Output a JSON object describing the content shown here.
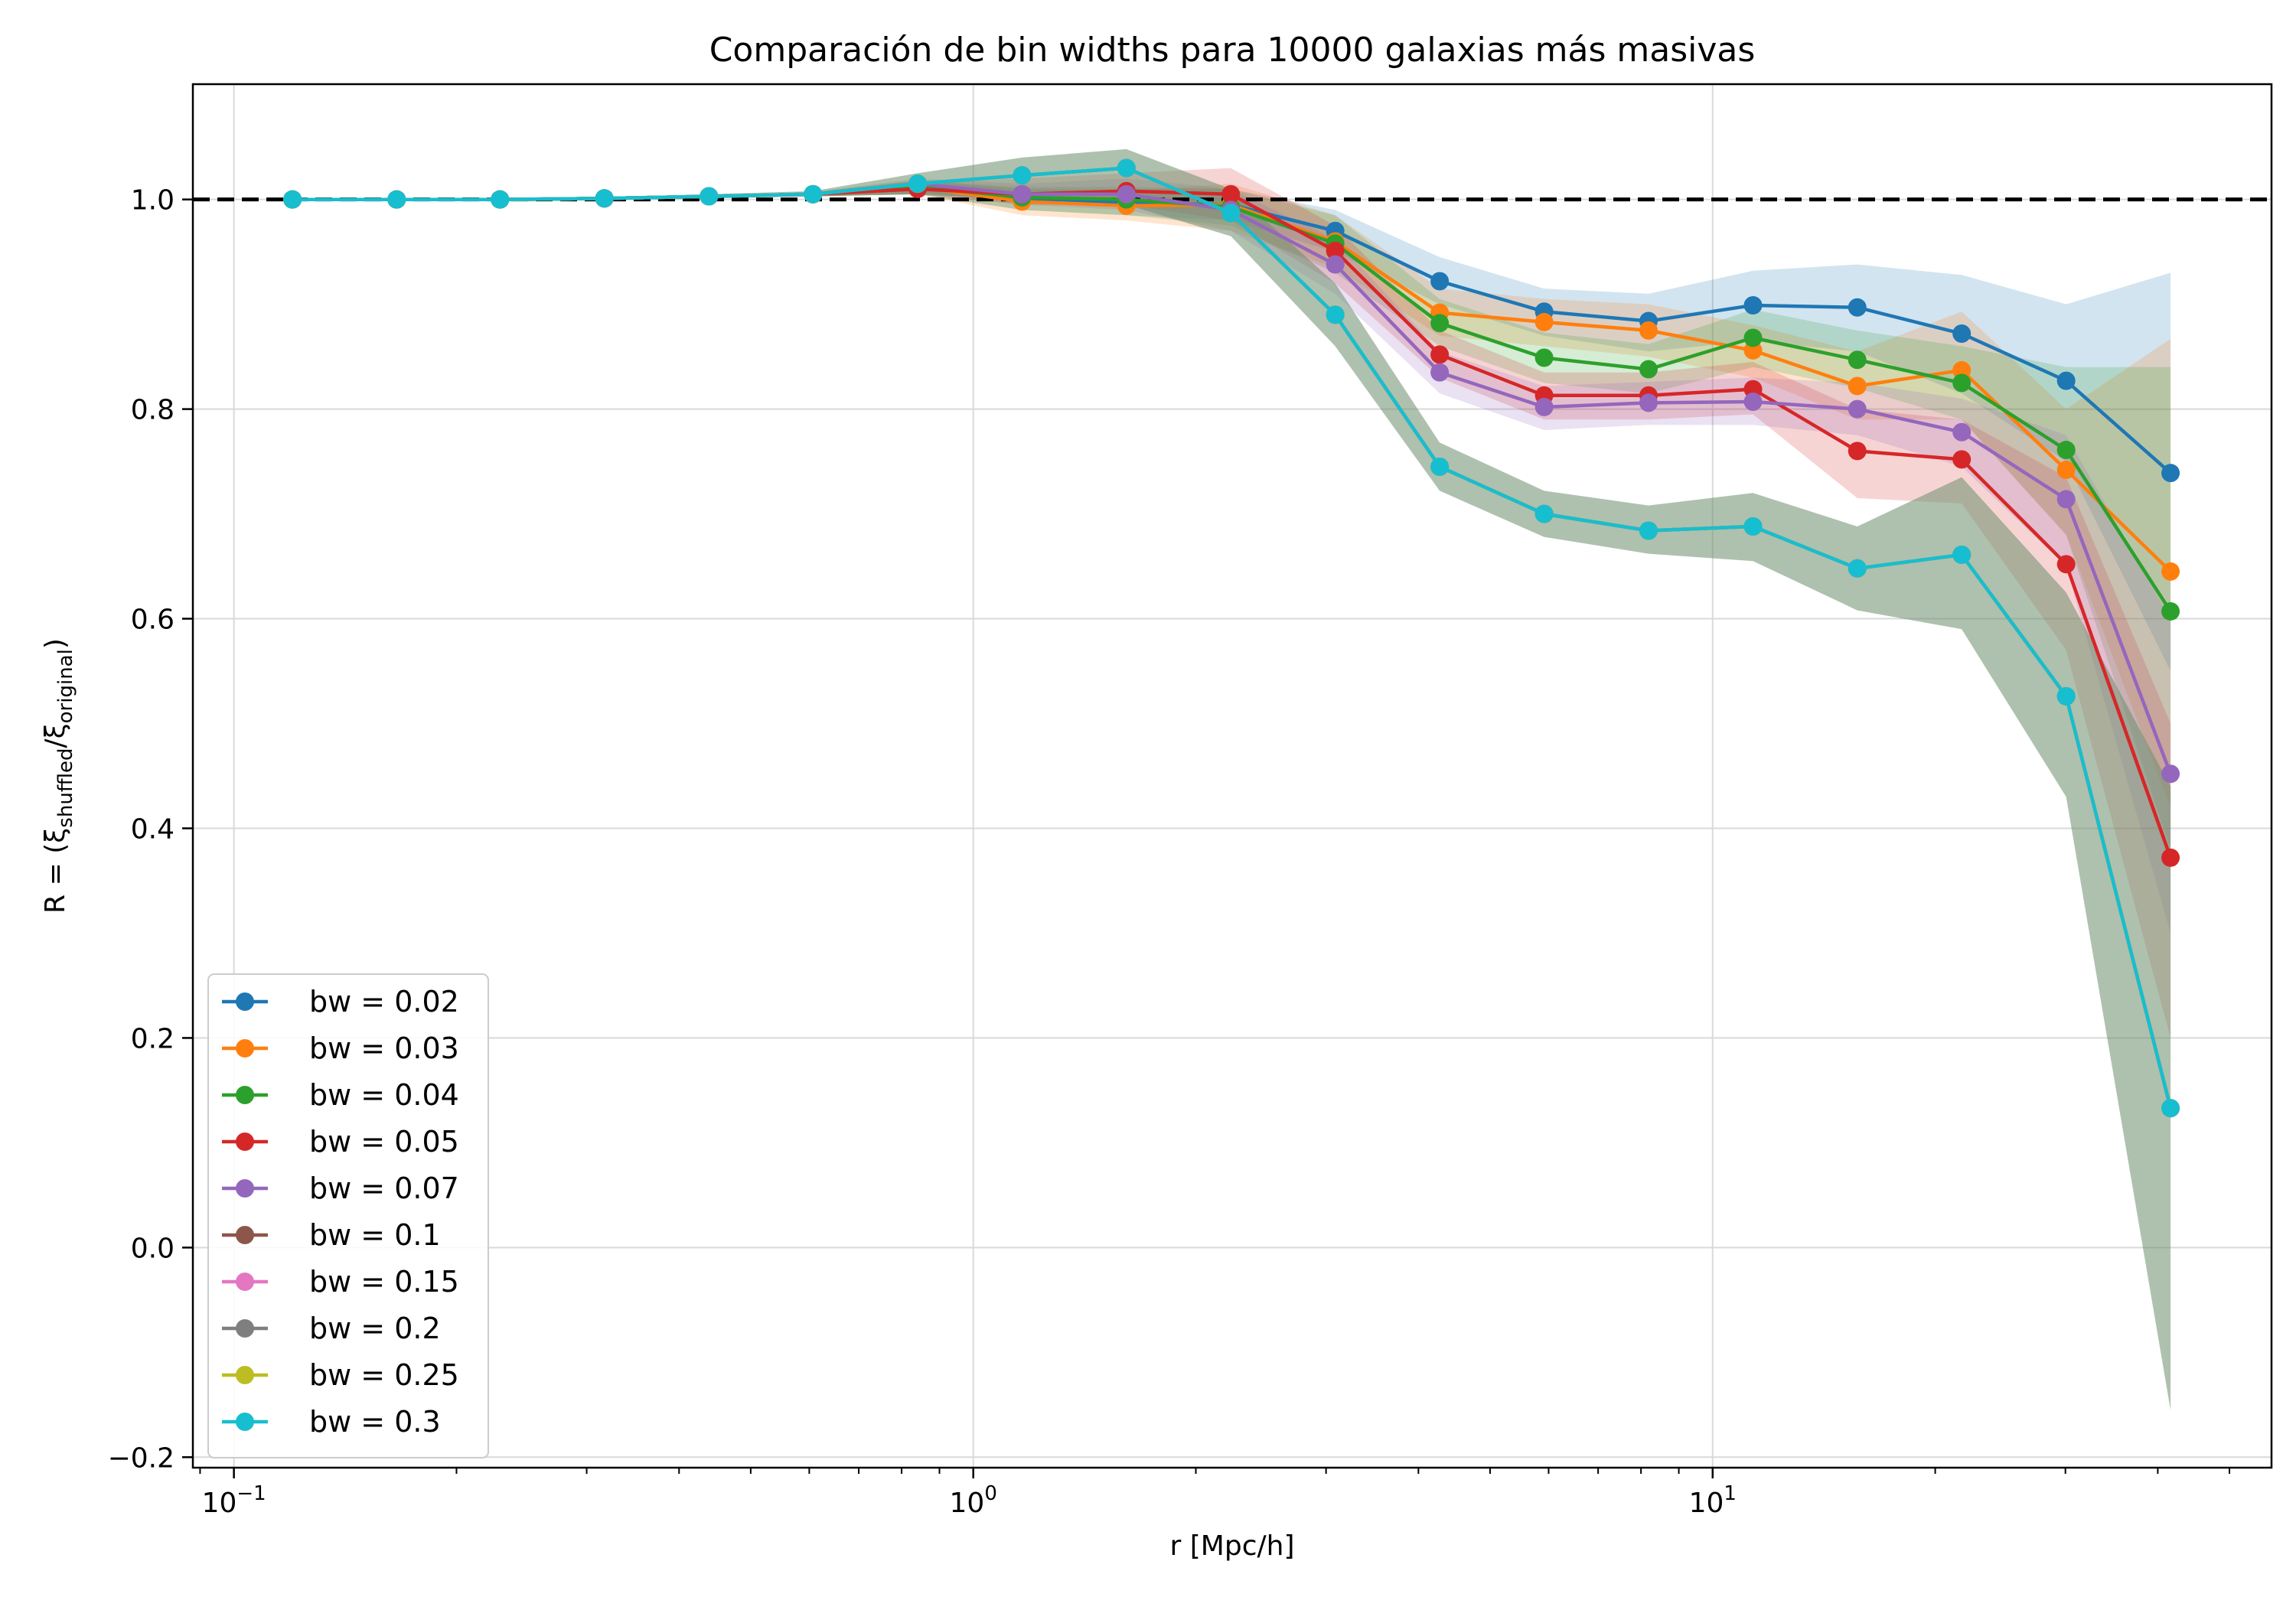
{
  "chart_data": {
    "type": "line",
    "title": "Comparación de bin widths para 10000 galaxias más masivas",
    "xlabel": "r [Mpc/h]",
    "ylabel": {
      "prefix": "R = (ξ",
      "sub1": "shuffled",
      "mid": "/ξ",
      "sub2": "original",
      "suffix": ")"
    },
    "xscale": "log",
    "xlim": [
      0.088,
      57
    ],
    "ylim": [
      -0.21,
      1.11
    ],
    "x_ticks": [
      {
        "value": 0.1,
        "base": "10",
        "exp": "−1"
      },
      {
        "value": 1,
        "base": "10",
        "exp": "0"
      },
      {
        "value": 10,
        "base": "10",
        "exp": "1"
      }
    ],
    "y_ticks": [
      {
        "value": -0.2,
        "label": "−0.2"
      },
      {
        "value": 0.0,
        "label": "0.0"
      },
      {
        "value": 0.2,
        "label": "0.2"
      },
      {
        "value": 0.4,
        "label": "0.4"
      },
      {
        "value": 0.6,
        "label": "0.6"
      },
      {
        "value": 0.8,
        "label": "0.8"
      },
      {
        "value": 1.0,
        "label": "1.0"
      }
    ],
    "grid": true,
    "legend_position": "lower-left",
    "reference_line": {
      "y": 1.0,
      "style": "dashed",
      "color": "#000000"
    },
    "x": [
      0.12,
      0.166,
      0.229,
      0.317,
      0.439,
      0.607,
      0.841,
      1.164,
      1.611,
      2.23,
      3.087,
      4.274,
      5.917,
      8.19,
      11.34,
      15.69,
      21.72,
      30.07,
      41.62
    ],
    "series": [
      {
        "name": "bw = 0.02",
        "color": "#1f77b4",
        "draw_band": true,
        "values": [
          1.0,
          1.0,
          1.0,
          1.001,
          1.003,
          1.005,
          1.012,
          1.0,
          0.997,
          0.995,
          0.97,
          0.922,
          0.893,
          0.884,
          0.899,
          0.897,
          0.872,
          0.827,
          0.739
        ],
        "lower": [
          1.0,
          1.0,
          1.0,
          1.0,
          1.002,
          1.003,
          1.005,
          0.99,
          0.985,
          0.98,
          0.95,
          0.9,
          0.87,
          0.855,
          0.865,
          0.855,
          0.815,
          0.75,
          0.55
        ],
        "upper": [
          1.0,
          1.0,
          1.0,
          1.002,
          1.004,
          1.007,
          1.018,
          1.01,
          1.01,
          1.01,
          0.99,
          0.945,
          0.915,
          0.91,
          0.932,
          0.938,
          0.928,
          0.9,
          0.93
        ]
      },
      {
        "name": "bw = 0.03",
        "color": "#ff7f0e",
        "draw_band": true,
        "values": [
          1.0,
          1.0,
          1.0,
          1.001,
          1.003,
          1.005,
          1.012,
          0.998,
          0.994,
          0.995,
          0.96,
          0.892,
          0.883,
          0.875,
          0.856,
          0.822,
          0.837,
          0.742,
          0.645
        ],
        "lower": [
          1.0,
          1.0,
          1.0,
          1.0,
          1.002,
          1.003,
          1.005,
          0.985,
          0.98,
          0.97,
          0.935,
          0.87,
          0.86,
          0.85,
          0.83,
          0.79,
          0.79,
          0.68,
          0.42
        ],
        "upper": [
          1.0,
          1.0,
          1.0,
          1.002,
          1.004,
          1.007,
          1.018,
          1.01,
          1.008,
          1.015,
          0.985,
          0.915,
          0.905,
          0.9,
          0.88,
          0.855,
          0.893,
          0.8,
          0.867
        ]
      },
      {
        "name": "bw = 0.04",
        "color": "#2ca02c",
        "draw_band": true,
        "values": [
          1.0,
          1.0,
          1.0,
          1.001,
          1.003,
          1.005,
          1.012,
          1.002,
          1.0,
          0.993,
          0.958,
          0.882,
          0.849,
          0.838,
          0.868,
          0.847,
          0.825,
          0.761,
          0.607
        ],
        "lower": [
          1.0,
          1.0,
          1.0,
          1.0,
          1.002,
          1.003,
          1.005,
          0.99,
          0.985,
          0.975,
          0.93,
          0.86,
          0.825,
          0.815,
          0.84,
          0.82,
          0.79,
          0.68,
          0.38
        ],
        "upper": [
          1.0,
          1.0,
          1.0,
          1.002,
          1.004,
          1.007,
          1.018,
          1.012,
          1.012,
          1.01,
          0.985,
          0.905,
          0.873,
          0.862,
          0.895,
          0.875,
          0.86,
          0.84,
          0.84
        ]
      },
      {
        "name": "bw = 0.05",
        "color": "#d62728",
        "draw_band": true,
        "values": [
          1.0,
          1.0,
          1.0,
          1.001,
          1.003,
          1.005,
          1.01,
          1.005,
          1.008,
          1.005,
          0.951,
          0.852,
          0.813,
          0.813,
          0.819,
          0.76,
          0.752,
          0.652,
          0.372
        ],
        "lower": [
          1.0,
          1.0,
          1.0,
          1.0,
          1.002,
          1.003,
          1.005,
          0.995,
          0.995,
          0.98,
          0.92,
          0.83,
          0.79,
          0.79,
          0.795,
          0.715,
          0.71,
          0.57,
          0.2
        ],
        "upper": [
          1.0,
          1.0,
          1.0,
          1.002,
          1.004,
          1.007,
          1.015,
          1.02,
          1.025,
          1.03,
          0.975,
          0.875,
          0.835,
          0.835,
          0.845,
          0.8,
          0.79,
          0.735,
          0.5
        ]
      },
      {
        "name": "bw = 0.07",
        "color": "#9467bd",
        "draw_band": true,
        "values": [
          1.0,
          1.0,
          1.0,
          1.001,
          1.003,
          1.005,
          1.015,
          1.005,
          1.005,
          0.99,
          0.938,
          0.835,
          0.802,
          0.806,
          0.807,
          0.8,
          0.778,
          0.714,
          0.452
        ],
        "lower": [
          1.0,
          1.0,
          1.0,
          1.0,
          1.002,
          1.003,
          1.008,
          0.995,
          0.99,
          0.97,
          0.91,
          0.815,
          0.78,
          0.785,
          0.785,
          0.775,
          0.745,
          0.65,
          0.3
        ],
        "upper": [
          1.0,
          1.0,
          1.0,
          1.002,
          1.004,
          1.007,
          1.02,
          1.015,
          1.02,
          1.01,
          0.962,
          0.855,
          0.822,
          0.826,
          0.83,
          0.825,
          0.81,
          0.775,
          0.6
        ]
      },
      {
        "name": "bw = 0.1",
        "color": "#8c564b",
        "draw_band": false,
        "values": [
          1.0,
          1.0,
          1.0,
          1.001,
          1.003,
          1.005,
          1.015,
          1.023,
          1.03,
          0.987,
          0.89,
          0.745,
          0.7,
          0.684,
          0.688,
          0.648,
          0.661,
          0.526,
          0.133
        ]
      },
      {
        "name": "bw = 0.15",
        "color": "#e377c2",
        "draw_band": false,
        "values": [
          1.0,
          1.0,
          1.0,
          1.001,
          1.003,
          1.005,
          1.015,
          1.023,
          1.03,
          0.987,
          0.89,
          0.745,
          0.7,
          0.684,
          0.688,
          0.648,
          0.661,
          0.526,
          0.133
        ]
      },
      {
        "name": "bw = 0.2",
        "color": "#7f7f7f",
        "draw_band": false,
        "values": [
          1.0,
          1.0,
          1.0,
          1.001,
          1.003,
          1.005,
          1.015,
          1.023,
          1.03,
          0.987,
          0.89,
          0.745,
          0.7,
          0.684,
          0.688,
          0.648,
          0.661,
          0.526,
          0.133
        ]
      },
      {
        "name": "bw = 0.25",
        "color": "#bcbd22",
        "draw_band": false,
        "values": [
          1.0,
          1.0,
          1.0,
          1.001,
          1.003,
          1.005,
          1.015,
          1.023,
          1.03,
          0.987,
          0.89,
          0.745,
          0.7,
          0.684,
          0.688,
          0.648,
          0.661,
          0.526,
          0.133
        ]
      },
      {
        "name": "bw = 0.3",
        "color": "#17becf",
        "draw_band": false,
        "values": [
          1.0,
          1.0,
          1.0,
          1.001,
          1.003,
          1.005,
          1.015,
          1.023,
          1.03,
          0.987,
          0.89,
          0.745,
          0.7,
          0.684,
          0.688,
          0.648,
          0.661,
          0.526,
          0.133
        ]
      }
    ],
    "shared_band": {
      "color": "#6b8e6b",
      "lower": [
        1.0,
        1.0,
        1.0,
        1.0,
        1.001,
        1.003,
        1.005,
        1.0,
        0.995,
        0.965,
        0.86,
        0.722,
        0.678,
        0.662,
        0.655,
        0.608,
        0.59,
        0.43,
        -0.155
      ],
      "upper": [
        1.0,
        1.0,
        1.0,
        1.002,
        1.005,
        1.008,
        1.025,
        1.04,
        1.048,
        1.01,
        0.92,
        0.768,
        0.722,
        0.708,
        0.72,
        0.688,
        0.735,
        0.625,
        0.44
      ]
    }
  }
}
